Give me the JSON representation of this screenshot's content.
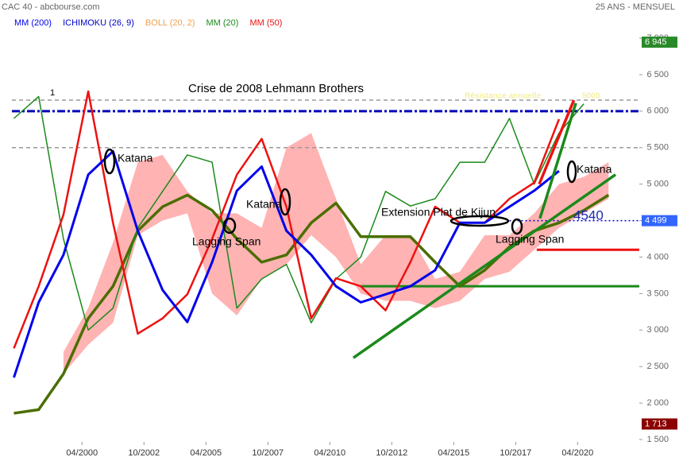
{
  "chart_data": {
    "type": "line",
    "title": "CAC 40 - abcbourse.com",
    "subtitle": "25 ANS - MENSUEL",
    "legend": [
      {
        "name": "MM (200)",
        "color": "#0000ee"
      },
      {
        "name": "ICHIMOKU (26, 9)",
        "color": "#0000cc"
      },
      {
        "name": "BOLL (20, 2)",
        "color": "#f0a050"
      },
      {
        "name": "MM (20)",
        "color": "#1a8a1a"
      },
      {
        "name": "MM (50)",
        "color": "#ee1111"
      }
    ],
    "x": [
      1997.5,
      1998.5,
      1999.5,
      2000.5,
      2001.5,
      2002.5,
      2003.5,
      2004.5,
      2005.5,
      2006.5,
      2007.5,
      2008.5,
      2009.5,
      2010.5,
      2011.5,
      2012.5,
      2013.5,
      2014.5,
      2015.5,
      2016.5,
      2017.5,
      2018.5,
      2019.5,
      2020.5,
      2021.5
    ],
    "cloud": {
      "color": "#ffb3b3",
      "upper": [
        null,
        null,
        2700,
        3300,
        4200,
        5300,
        5400,
        4900,
        4600,
        4600,
        4400,
        5500,
        5700,
        4800,
        3900,
        4300,
        4300,
        3700,
        3800,
        4300,
        4300,
        4600,
        5000,
        5100,
        5300
      ],
      "lower": [
        null,
        null,
        2400,
        2800,
        3100,
        4300,
        4500,
        4600,
        3500,
        3200,
        3700,
        3900,
        4300,
        4000,
        3500,
        3400,
        3400,
        3300,
        3400,
        3700,
        3800,
        4100,
        4400,
        4600,
        4800
      ]
    },
    "series": [
      {
        "color": "#4b6e00",
        "values": [
          1860,
          1910,
          2400,
          3160,
          3600,
          4360,
          4690,
          4850,
          4640,
          4250,
          3930,
          4030,
          4470,
          4740,
          4280,
          4280,
          4280,
          3930,
          3600,
          3820,
          4140,
          4360,
          4470,
          4640,
          4850
        ]
      },
      {
        "color": "#1a8a1a",
        "values": [
          5900,
          6200,
          4250,
          3000,
          3300,
          4400,
          4900,
          5400,
          5300,
          3300,
          3700,
          3900,
          3100,
          3700,
          4000,
          4900,
          4700,
          4800,
          5300,
          5300,
          5900,
          5000,
          5700,
          6100,
          null
        ]
      },
      {
        "color": "#ee1111",
        "values": [
          2750,
          3600,
          4580,
          6270,
          4470,
          2950,
          3160,
          3490,
          4250,
          5130,
          5620,
          4690,
          3160,
          3710,
          3600,
          3270,
          3930,
          4690,
          4470,
          4470,
          4800,
          5020,
          5890,
          null,
          null
        ]
      },
      {
        "color": "#0000ee",
        "values": [
          2350,
          3380,
          4030,
          5130,
          5450,
          4360,
          3550,
          3110,
          3930,
          4910,
          5240,
          4360,
          4030,
          3600,
          3380,
          3490,
          3600,
          3820,
          4470,
          4470,
          4690,
          4910,
          5180,
          null,
          null
        ]
      }
    ],
    "levels": [
      {
        "value": 6150,
        "color": "#999999",
        "style": "dashed",
        "from": 1997.42
      },
      {
        "value": 6000,
        "color": "#0000bb",
        "style": "dashdot",
        "from": 1997.42
      },
      {
        "value": 5500,
        "color": "#999999",
        "style": "dashed",
        "from": 1997.42
      },
      {
        "value": 3600,
        "color": "#1a8a1a",
        "style": "solid",
        "from": 2011.5
      },
      {
        "value": 4499,
        "color": "#0000cc",
        "style": "dotted",
        "from": 2017.5
      },
      {
        "value": 4100,
        "color": "#ee1111",
        "style": "solid",
        "from": 2018.6
      }
    ],
    "trendlines": [
      {
        "x": [
          2011.2,
          2021.78
        ],
        "y": [
          2620,
          5130
        ],
        "color": "#1a8a1a"
      },
      {
        "x": [
          2018.73,
          2020.18
        ],
        "y": [
          4530,
          6110
        ],
        "color": "#1a8a1a"
      },
      {
        "x": [
          2018.7,
          2020.1
        ],
        "y": [
          5000,
          6150
        ],
        "color": "#ee1111"
      }
    ],
    "annotations": [
      "1",
      "Crise de 2008 Lehmann Brothers",
      "Katana",
      "Katana",
      "Katana",
      "Lagging Span",
      "Lagging Span",
      "Extension Plat de Kijun",
      "4540",
      "Résistance annuelle",
      "5000"
    ],
    "price_labels": [
      {
        "value": 6945,
        "label": "6 945",
        "color": "#2a8a2a"
      },
      {
        "value": 4499,
        "label": "4 499",
        "color": "#3366ff"
      },
      {
        "value": 1713,
        "label": "1 713",
        "color": "#8b0000"
      }
    ],
    "xlim": [
      1997.42,
      2022.74
    ],
    "ylim": [
      1500,
      7000
    ],
    "xticks": [
      {
        "value": 2000.25,
        "label": "04/2000"
      },
      {
        "value": 2002.75,
        "label": "10/2002"
      },
      {
        "value": 2005.25,
        "label": "04/2005"
      },
      {
        "value": 2007.75,
        "label": "10/2007"
      },
      {
        "value": 2010.25,
        "label": "04/2010"
      },
      {
        "value": 2012.75,
        "label": "10/2012"
      },
      {
        "value": 2015.25,
        "label": "04/2015"
      },
      {
        "value": 2017.75,
        "label": "10/2017"
      },
      {
        "value": 2020.25,
        "label": "04/2020"
      }
    ],
    "yticks": [
      {
        "value": 1500,
        "label": "1 500"
      },
      {
        "value": 2000,
        "label": "2 000"
      },
      {
        "value": 2500,
        "label": "2 500"
      },
      {
        "value": 3000,
        "label": "3 000"
      },
      {
        "value": 3500,
        "label": "3 500"
      },
      {
        "value": 4000,
        "label": "4 000"
      },
      {
        "value": 4500,
        "label": "4 500"
      },
      {
        "value": 5000,
        "label": "5 000"
      },
      {
        "value": 5500,
        "label": "5 500"
      },
      {
        "value": 6000,
        "label": "6 000"
      },
      {
        "value": 6500,
        "label": "6 500"
      },
      {
        "value": 7000,
        "label": "7 000"
      }
    ]
  }
}
